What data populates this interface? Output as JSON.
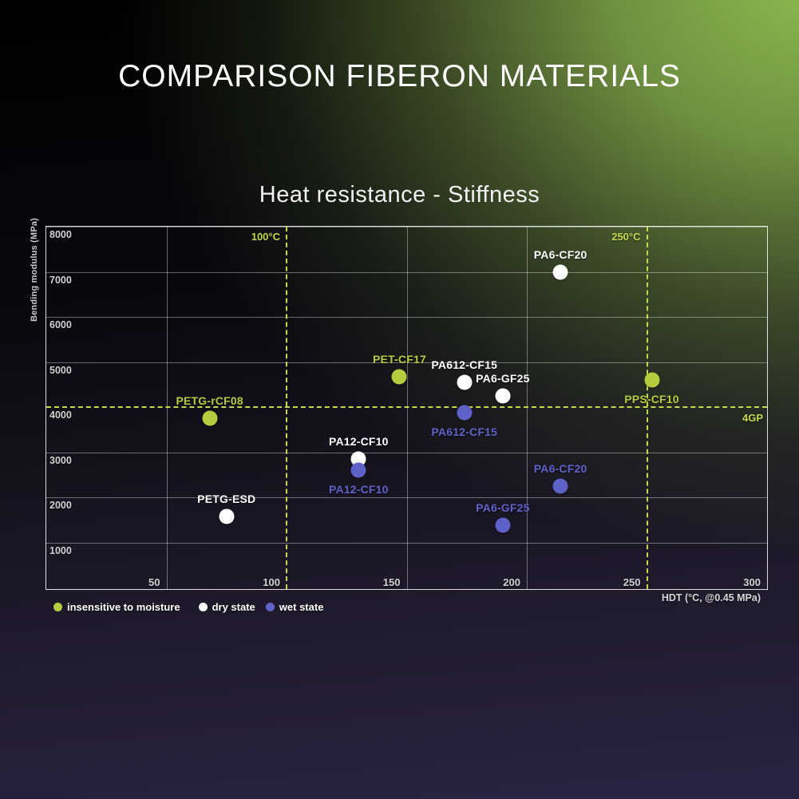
{
  "page": {
    "title": "COMPARISON FIBERON MATERIALS"
  },
  "chart_data": {
    "type": "scatter",
    "title": "Heat resistance - Stiffness",
    "xlabel": "HDT (°C, @0.45 MPa)",
    "ylabel": "Bending modulus (MPa)",
    "xlim": [
      0,
      300
    ],
    "ylim": [
      -35,
      8000
    ],
    "x_ticks": [
      50,
      100,
      150,
      200,
      250,
      300
    ],
    "y_ticks": [
      8000,
      7000,
      6000,
      5000,
      4000,
      3000,
      2000,
      1000
    ],
    "x_solid_gridlines": [
      50,
      150,
      200
    ],
    "y_solid_gridlines": [
      8000,
      7000,
      6000,
      5000,
      3000,
      2000,
      1000
    ],
    "grid": true,
    "legend_position": "bottom-left",
    "reference_lines": [
      {
        "axis": "x",
        "value": 100,
        "label": "100°C"
      },
      {
        "axis": "x",
        "value": 250,
        "label": "250°C"
      },
      {
        "axis": "y",
        "value": 4000,
        "label": "4GP"
      }
    ],
    "legend": [
      {
        "label": "insensitive to moisture",
        "color_key": "green"
      },
      {
        "label": "dry state",
        "color_key": "white"
      },
      {
        "label": "wet state",
        "color_key": "purple"
      }
    ],
    "series": [
      {
        "name": "insensitive to moisture",
        "color_key": "green",
        "points": [
          {
            "label": "PETG-rCF08",
            "x": 68,
            "y": 3750,
            "label_pos": "above"
          },
          {
            "label": "PET-CF17",
            "x": 147,
            "y": 4670,
            "label_pos": "above"
          },
          {
            "label": "PPS-CF10",
            "x": 252,
            "y": 4600,
            "label_pos": "below"
          }
        ]
      },
      {
        "name": "dry state",
        "color_key": "white",
        "points": [
          {
            "label": "PETG-ESD",
            "x": 75,
            "y": 1580,
            "label_pos": "above"
          },
          {
            "label": "PA12-CF10",
            "x": 130,
            "y": 2850,
            "label_pos": "above"
          },
          {
            "label": "PA612-CF15",
            "x": 174,
            "y": 4550,
            "label_pos": "above"
          },
          {
            "label": "PA6-GF25",
            "x": 190,
            "y": 4250,
            "label_pos": "above"
          },
          {
            "label": "PA6-CF20",
            "x": 214,
            "y": 7000,
            "label_pos": "above"
          }
        ]
      },
      {
        "name": "wet state",
        "color_key": "purple",
        "points": [
          {
            "label": "PA12-CF10",
            "x": 130,
            "y": 2600,
            "label_pos": "below"
          },
          {
            "label": "PA612-CF15",
            "x": 174,
            "y": 3870,
            "label_pos": "below"
          },
          {
            "label": "PA6-GF25",
            "x": 190,
            "y": 1380,
            "label_pos": "above"
          },
          {
            "label": "PA6-CF20",
            "x": 214,
            "y": 2250,
            "label_pos": "above"
          }
        ]
      }
    ],
    "colors": {
      "green": "#b4cc3e",
      "white": "#ffffff",
      "purple": "#5e62c8",
      "dashed_line": "#c6d84c"
    }
  }
}
